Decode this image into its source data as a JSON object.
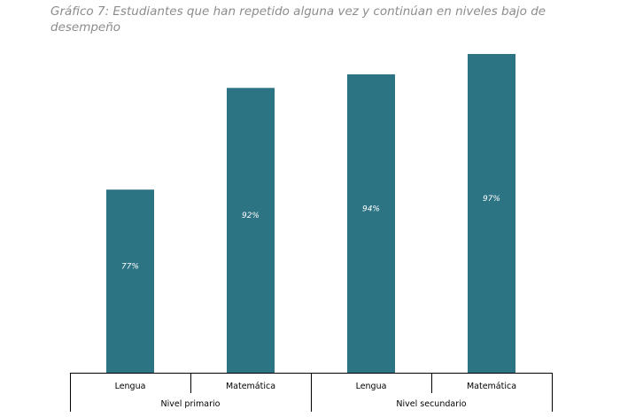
{
  "chart_data": {
    "type": "bar",
    "title": "Gráfico 7: Estudiantes que  han repetido alguna vez  y continúan en niveles bajo de desempeño",
    "categories": [
      "Lengua",
      "Matemática",
      "Lengua",
      "Matemática"
    ],
    "groups": [
      {
        "label": "Nivel primario",
        "categories": [
          0,
          1
        ]
      },
      {
        "label": "Nivel secundario",
        "categories": [
          2,
          3
        ]
      }
    ],
    "values": [
      77,
      92,
      94,
      97
    ],
    "data_labels": [
      "77%",
      "92%",
      "94%",
      "97%"
    ],
    "ylim": [
      50,
      100
    ],
    "grid": false,
    "bar_color": "#2c7383"
  }
}
